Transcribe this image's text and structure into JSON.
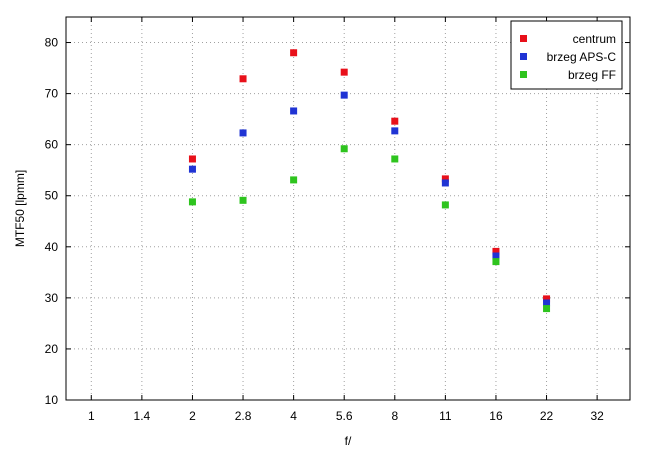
{
  "chart_data": {
    "type": "scatter",
    "xlabel": "f/",
    "ylabel": "MTF50 [lpmm]",
    "categories": [
      "1",
      "1.4",
      "2",
      "2.8",
      "4",
      "5.6",
      "8",
      "11",
      "16",
      "22",
      "32"
    ],
    "ylim": [
      10,
      85
    ],
    "yticks": [
      10,
      20,
      30,
      40,
      50,
      60,
      70,
      80
    ],
    "grid": true,
    "legend_position": "top-right",
    "series": [
      {
        "name": "centrum",
        "color": "#e8101a",
        "points": [
          {
            "x": "2",
            "y": 57.2
          },
          {
            "x": "2.8",
            "y": 72.9
          },
          {
            "x": "4",
            "y": 78.0
          },
          {
            "x": "5.6",
            "y": 74.2
          },
          {
            "x": "8",
            "y": 64.6
          },
          {
            "x": "11",
            "y": 53.3
          },
          {
            "x": "16",
            "y": 39.1
          },
          {
            "x": "22",
            "y": 29.8
          }
        ]
      },
      {
        "name": "brzeg APS-C",
        "color": "#2034d4",
        "points": [
          {
            "x": "2",
            "y": 55.2
          },
          {
            "x": "2.8",
            "y": 62.3
          },
          {
            "x": "4",
            "y": 66.6
          },
          {
            "x": "5.6",
            "y": 69.7
          },
          {
            "x": "8",
            "y": 62.7
          },
          {
            "x": "11",
            "y": 52.5
          },
          {
            "x": "16",
            "y": 38.2
          },
          {
            "x": "22",
            "y": 29.0
          }
        ]
      },
      {
        "name": "brzeg FF",
        "color": "#2ec41e",
        "points": [
          {
            "x": "2",
            "y": 48.8
          },
          {
            "x": "2.8",
            "y": 49.1
          },
          {
            "x": "4",
            "y": 53.1
          },
          {
            "x": "5.6",
            "y": 59.2
          },
          {
            "x": "8",
            "y": 57.2
          },
          {
            "x": "11",
            "y": 48.2
          },
          {
            "x": "16",
            "y": 37.1
          },
          {
            "x": "22",
            "y": 27.9
          }
        ]
      }
    ]
  }
}
